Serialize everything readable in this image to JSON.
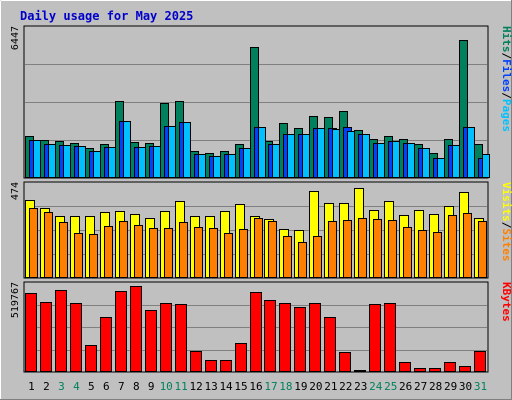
{
  "chart_data": {
    "type": "bar",
    "title": "Daily usage for May 2025",
    "categories": [
      "1",
      "2",
      "3",
      "4",
      "5",
      "6",
      "7",
      "8",
      "9",
      "10",
      "11",
      "12",
      "13",
      "14",
      "15",
      "16",
      "17",
      "18",
      "19",
      "20",
      "21",
      "22",
      "23",
      "24",
      "25",
      "26",
      "27",
      "28",
      "29",
      "30",
      "31"
    ],
    "weekend_days": [
      3,
      4,
      10,
      11,
      17,
      18,
      24,
      25,
      31
    ],
    "colors": {
      "Hits": "#00805c",
      "Files": "#0040ff",
      "Pages": "#00c0ff",
      "Visits": "#ffff00",
      "Sites": "#ff8000",
      "KBytes": "#ff0000",
      "weekend": "#00805c",
      "weekday": "#000000",
      "title": "#0000cc",
      "background": "#c0c0c0"
    },
    "panels": [
      {
        "id": "hits",
        "max_label": "6447",
        "ylim": [
          0,
          6447
        ],
        "series": [
          {
            "name": "Hits",
            "values": [
              1850,
              1640,
              1590,
              1510,
              1320,
              1480,
              3370,
              1560,
              1510,
              3250,
              3370,
              1160,
              1110,
              1180,
              1480,
              5700,
              1590,
              2400,
              2180,
              2680,
              2660,
              2900,
              2090,
              1690,
              1850,
              1720,
              1470,
              1110,
              1710,
              6030,
              1470
            ]
          },
          {
            "name": "Files",
            "values": [
              1650,
              1490,
              1420,
              1390,
              1190,
              1340,
              2500,
              1370,
              1400,
              2280,
              2460,
              1030,
              980,
              1050,
              1320,
              2200,
              1490,
              1930,
              1900,
              2160,
              2160,
              2200,
              1900,
              1520,
              1630,
              1530,
              1290,
              860,
              1420,
              2200,
              860
            ]
          },
          {
            "name": "Pages",
            "values": [
              1650,
              1490,
              1420,
              1390,
              1190,
              1340,
              2480,
              1370,
              1400,
              2280,
              2460,
              1030,
              980,
              1050,
              1320,
              2200,
              1490,
              1930,
              1900,
              2160,
              2140,
              2040,
              1900,
              1520,
              1630,
              1530,
              1290,
              860,
              1420,
              2200,
              1030
            ]
          }
        ],
        "labels": [
          {
            "text": "Pages",
            "color": "#00c0ff"
          },
          {
            "text": "/",
            "color": "#000000"
          },
          {
            "text": "Files",
            "color": "#0040ff"
          },
          {
            "text": "/",
            "color": "#000000"
          },
          {
            "text": "Hits",
            "color": "#00805c"
          }
        ]
      },
      {
        "id": "visits",
        "max_label": "474",
        "ylim": [
          0,
          474
        ],
        "series": [
          {
            "name": "Visits",
            "values": [
              400,
              360,
              320,
              320,
              320,
              340,
              345,
              330,
              310,
              345,
              395,
              320,
              320,
              345,
              380,
              320,
              305,
              255,
              245,
              450,
              385,
              385,
              465,
              350,
              395,
              325,
              350,
              330,
              370,
              445,
              310
            ]
          },
          {
            "name": "Sites",
            "values": [
              360,
              340,
              290,
              230,
              225,
              270,
              295,
              275,
              260,
              260,
              290,
              265,
              260,
              230,
              250,
              310,
              295,
              215,
              185,
              215,
              295,
              300,
              310,
              305,
              300,
              265,
              245,
              235,
              325,
              335,
              295
            ]
          }
        ],
        "labels": [
          {
            "text": "Sites",
            "color": "#ff8000"
          },
          {
            "text": "/",
            "color": "#000000"
          },
          {
            "text": "Visits",
            "color": "#ffff00"
          }
        ]
      },
      {
        "id": "kbytes",
        "max_label": "519767",
        "ylim": [
          0,
          519767
        ],
        "series": [
          {
            "name": "KBytes",
            "values": [
              480000,
              425000,
              495000,
              415000,
              165000,
              335000,
              490000,
              519767,
              375000,
              415000,
              410000,
              125000,
              75000,
              75000,
              175000,
              485000,
              435000,
              420000,
              390000,
              415000,
              335000,
              120000,
              15000,
              410000,
              420000,
              60000,
              25000,
              25000,
              60000,
              35000,
              125000
            ]
          }
        ],
        "labels": [
          {
            "text": "KBytes",
            "color": "#ff0000"
          }
        ]
      }
    ]
  }
}
